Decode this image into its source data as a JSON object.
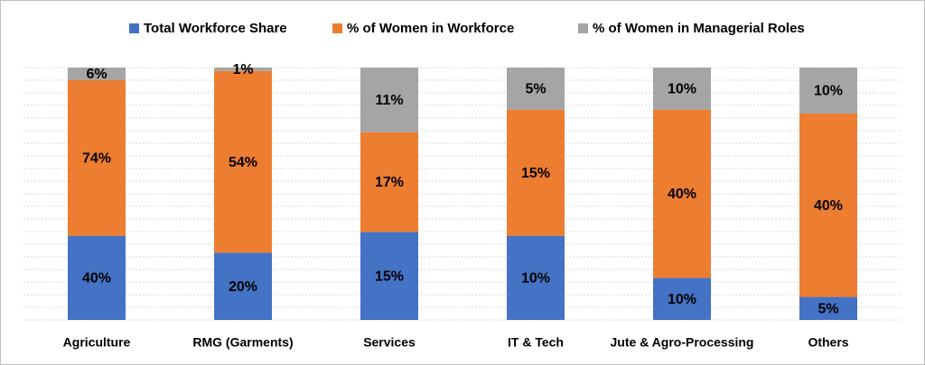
{
  "chart_data": {
    "type": "stacked_bar_100",
    "categories": [
      "Agriculture",
      "RMG (Garments)",
      "Services",
      "IT & Tech",
      "Jute & Agro-Processing",
      "Others"
    ],
    "series": [
      {
        "name": "Total Workforce Share",
        "color": "#4472c4",
        "values": [
          40,
          20,
          15,
          10,
          10,
          5
        ],
        "value_labels": [
          "40%",
          "20%",
          "15%",
          "10%",
          "10%",
          "5%"
        ]
      },
      {
        "name": "% of Women in Workforce",
        "color": "#ed7d31",
        "values": [
          74,
          54,
          17,
          15,
          40,
          40
        ],
        "value_labels": [
          "74%",
          "54%",
          "17%",
          "15%",
          "40%",
          "40%"
        ]
      },
      {
        "name": "% of Women in Managerial Roles",
        "color": "#a5a5a5",
        "values": [
          6,
          1,
          11,
          5,
          10,
          10
        ],
        "value_labels": [
          "6%",
          "1%",
          "11%",
          "5%",
          "10%",
          "10%"
        ]
      }
    ],
    "ylim": [
      0,
      100
    ],
    "yticks": [
      0,
      5,
      10,
      15,
      20,
      25,
      30,
      35,
      40,
      45,
      50,
      55,
      60,
      65,
      70,
      75,
      80,
      85,
      90,
      95,
      100
    ],
    "grid": true,
    "legend": "top"
  }
}
